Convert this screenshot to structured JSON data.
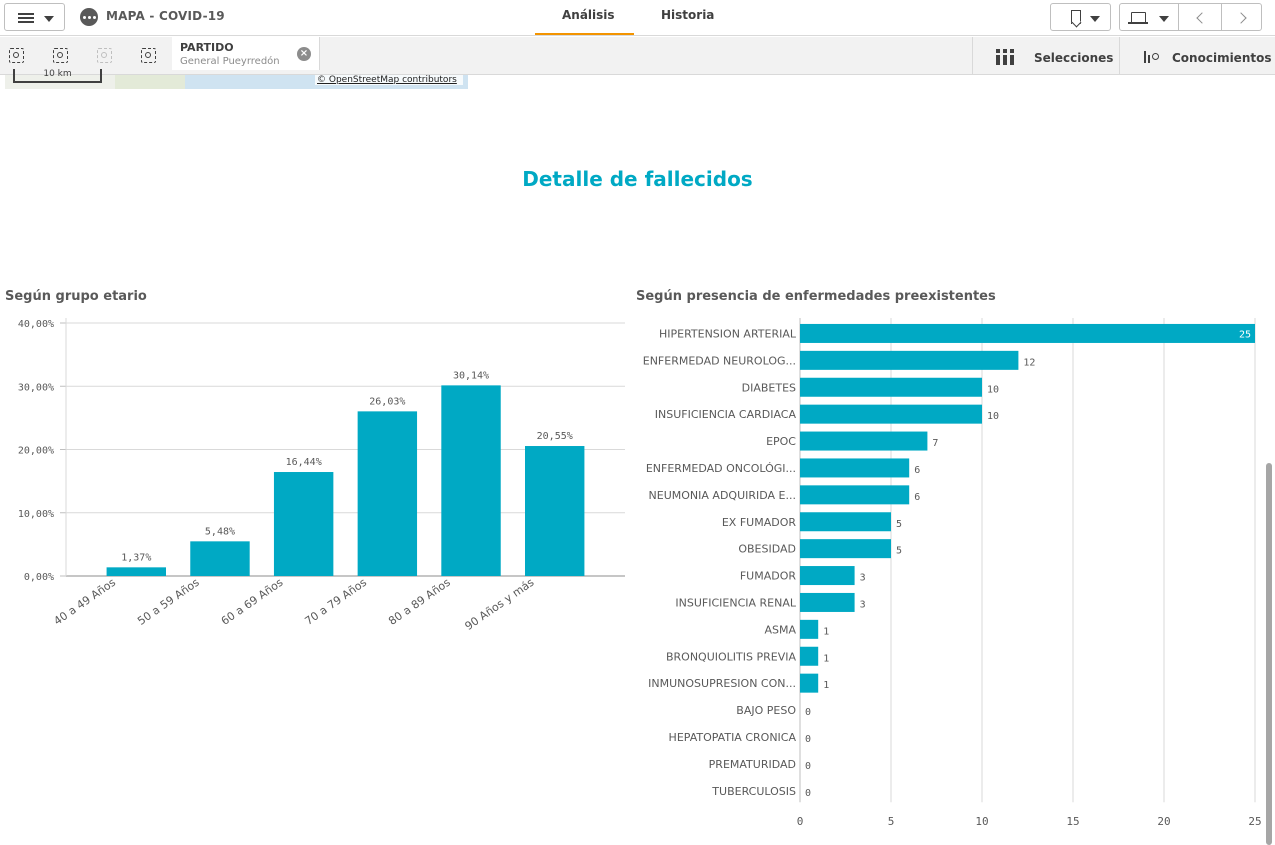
{
  "header": {
    "app_title": "MAPA - COVID-19",
    "tabs": [
      {
        "label": "Análisis",
        "active": true
      },
      {
        "label": "Historia",
        "active": false
      }
    ]
  },
  "selection_bar": {
    "chip": {
      "field": "PARTIDO",
      "value": "General Pueyrredón"
    },
    "selecciones_label": "Selecciones",
    "conocimientos_label": "Conocimientos"
  },
  "map": {
    "scale_label": "10 km",
    "attribution": "© OpenStreetMap contributors"
  },
  "section_title": "Detalle de fallecidos",
  "colors": {
    "accent": "#00a9c4",
    "tab_underline": "#f39400"
  },
  "chart_data": [
    {
      "type": "bar",
      "title": "Según grupo etario",
      "orientation": "vertical",
      "categories": [
        "40 a 49 Años",
        "50 a 59 Años",
        "60 a 69 Años",
        "70 a 79 Años",
        "80 a 89 Años",
        "90 Años y más"
      ],
      "values": [
        1.37,
        5.48,
        16.44,
        26.03,
        30.14,
        20.55
      ],
      "value_labels": [
        "1,37%",
        "5,48%",
        "16,44%",
        "26,03%",
        "30,14%",
        "20,55%"
      ],
      "y_ticks": [
        "0,00%",
        "10,00%",
        "20,00%",
        "30,00%",
        "40,00%"
      ],
      "ylim": [
        0,
        40
      ],
      "grid": true
    },
    {
      "type": "bar",
      "title": "Según presencia de enfermedades preexistentes",
      "orientation": "horizontal",
      "categories": [
        "HIPERTENSION ARTERIAL",
        "ENFERMEDAD NEUROLOG...",
        "DIABETES",
        "INSUFICIENCIA CARDIACA",
        "EPOC",
        "ENFERMEDAD ONCOLÓGI...",
        "NEUMONIA ADQUIRIDA E...",
        "EX FUMADOR",
        "OBESIDAD",
        "FUMADOR",
        "INSUFICIENCIA RENAL",
        "ASMA",
        "BRONQUIOLITIS PREVIA",
        "INMUNOSUPRESION CON...",
        "BAJO PESO",
        "HEPATOPATIA CRONICA",
        "PREMATURIDAD",
        "TUBERCULOSIS"
      ],
      "values": [
        25,
        12,
        10,
        10,
        7,
        6,
        6,
        5,
        5,
        3,
        3,
        1,
        1,
        1,
        0,
        0,
        0,
        0
      ],
      "x_ticks": [
        0,
        5,
        10,
        15,
        20,
        25
      ],
      "xlim": [
        0,
        25
      ],
      "grid": true
    }
  ]
}
